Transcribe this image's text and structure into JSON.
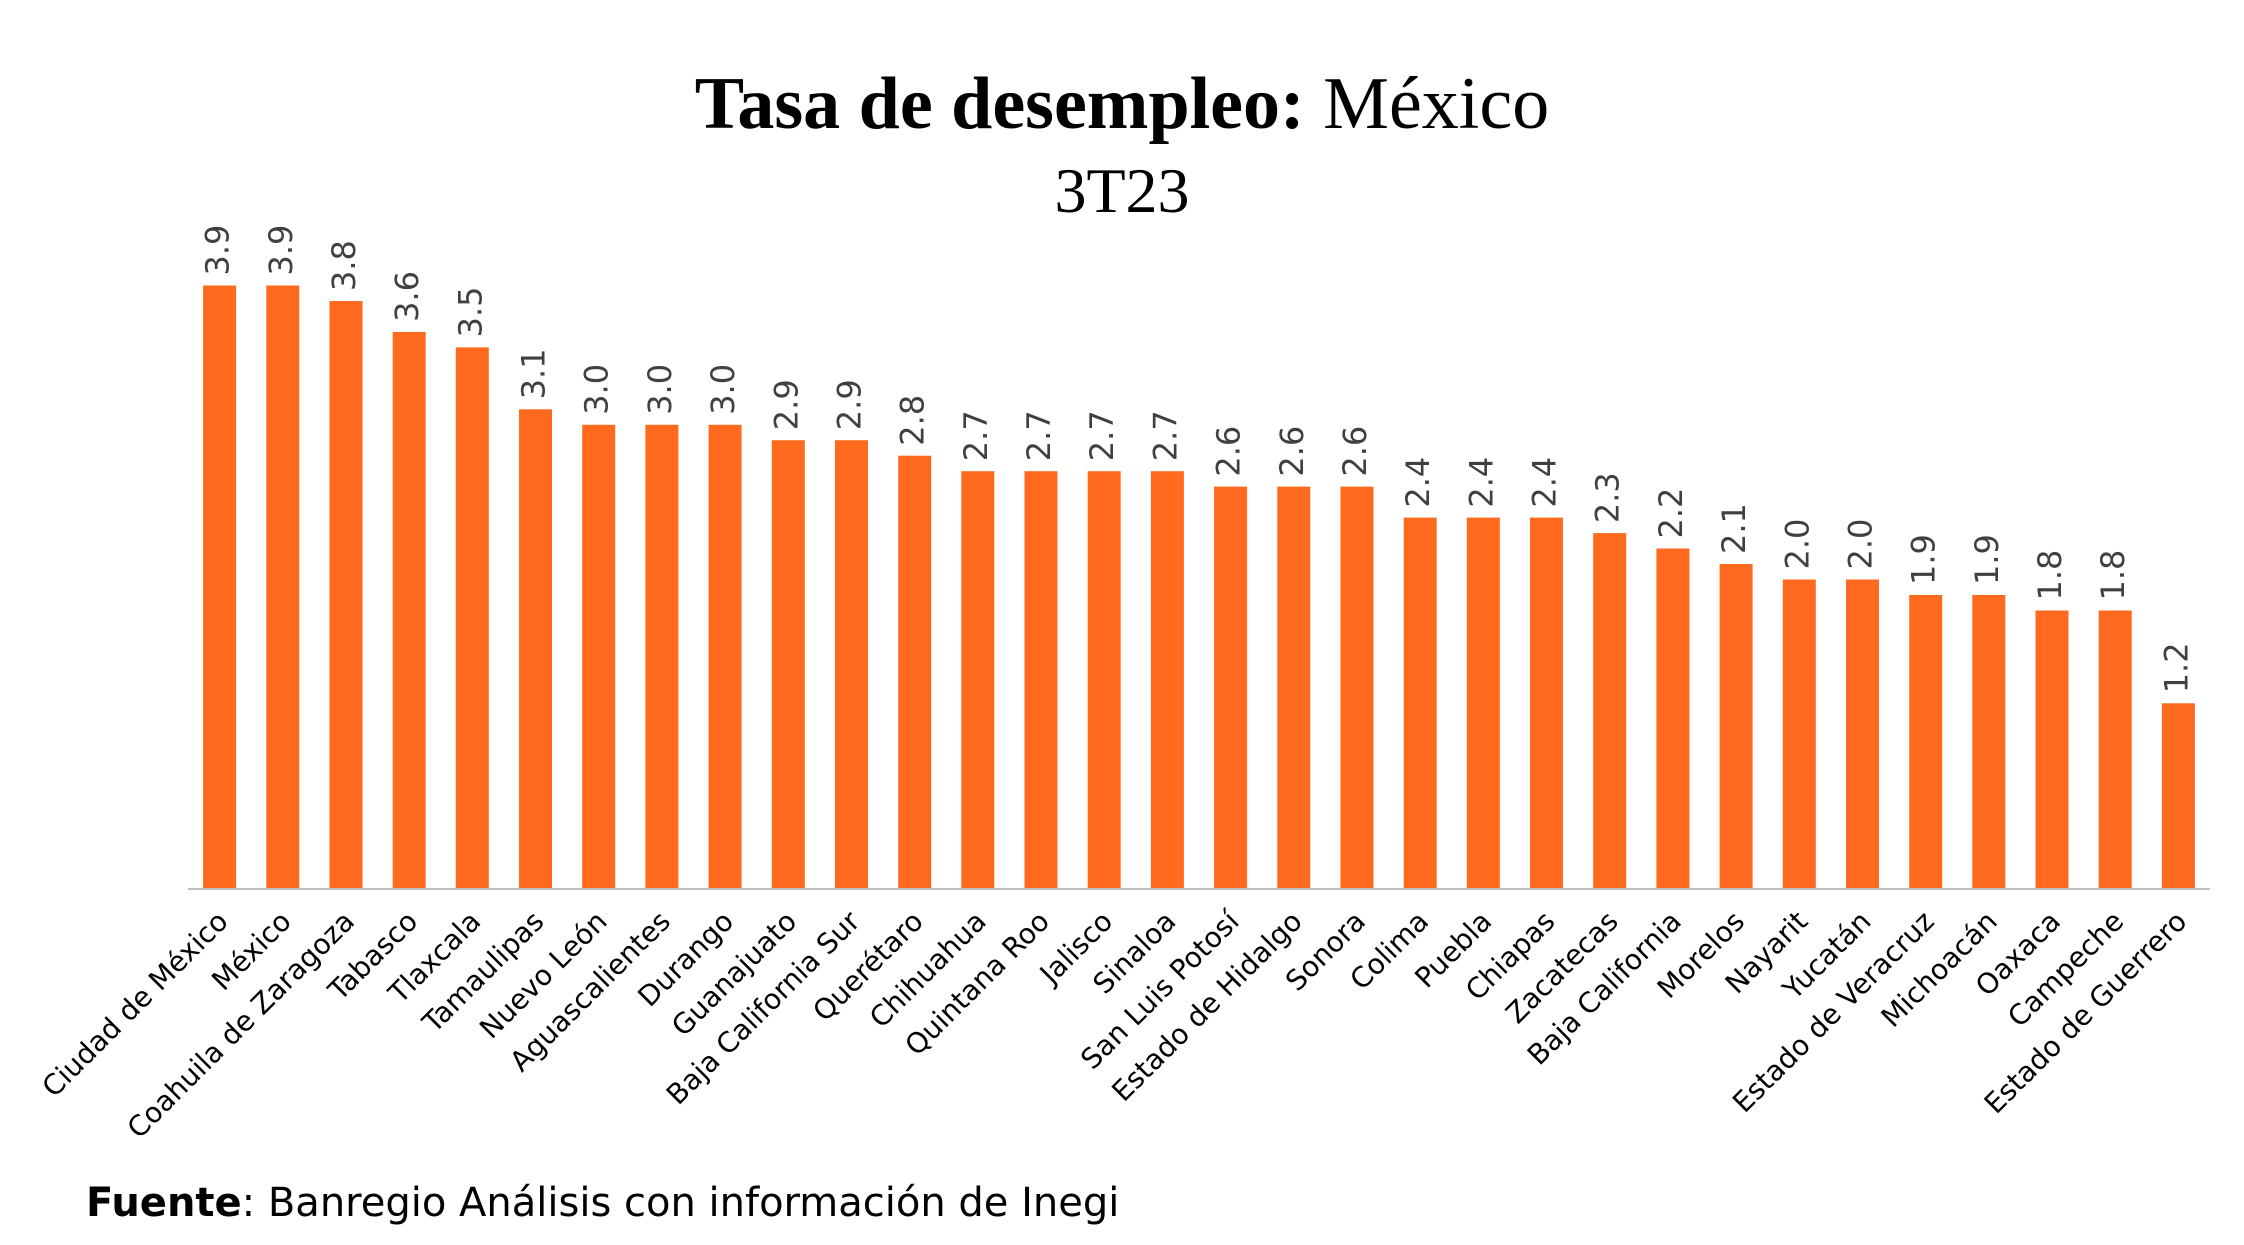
{
  "chart_data": {
    "type": "bar",
    "title_bold": "Tasa de desempleo:",
    "title_rest": "México",
    "subtitle": "3T23",
    "categories": [
      "Ciudad de México",
      "México",
      "Coahuila de Zaragoza",
      "Tabasco",
      "Tlaxcala",
      "Tamaulipas",
      "Nuevo León",
      "Aguascalientes",
      "Durango",
      "Guanajuato",
      "Baja California Sur",
      "Querétaro",
      "Chihuahua",
      "Quintana Roo",
      "Jalisco",
      "Sinaloa",
      "San Luis Potosí",
      "Estado de Hidalgo",
      "Sonora",
      "Colima",
      "Puebla",
      "Chiapas",
      "Zacatecas",
      "Baja California",
      "Morelos",
      "Nayarit",
      "Yucatán",
      "Estado de Veracruz",
      "Michoacán",
      "Oaxaca",
      "Campeche",
      "Estado de Guerrero"
    ],
    "values": [
      3.9,
      3.9,
      3.8,
      3.6,
      3.5,
      3.1,
      3.0,
      3.0,
      3.0,
      2.9,
      2.9,
      2.8,
      2.7,
      2.7,
      2.7,
      2.7,
      2.6,
      2.6,
      2.6,
      2.4,
      2.4,
      2.4,
      2.3,
      2.2,
      2.1,
      2.0,
      2.0,
      1.9,
      1.9,
      1.8,
      1.8,
      1.2
    ],
    "data_labels": [
      "3.9",
      "3.9",
      "3.8",
      "3.6",
      "3.5",
      "3.1",
      "3.0",
      "3.0",
      "3.0",
      "2.9",
      "2.9",
      "2.8",
      "2.7",
      "2.7",
      "2.7",
      "2.7",
      "2.6",
      "2.6",
      "2.6",
      "2.4",
      "2.4",
      "2.4",
      "2.3",
      "2.2",
      "2.1",
      "2.0",
      "2.0",
      "1.9",
      "1.9",
      "1.8",
      "1.8",
      "1.2"
    ],
    "bar_color": "#FF6A1F",
    "axis_color": "#BFBFBF",
    "ylim": [
      0,
      4.0
    ],
    "grid": false,
    "legend": "none"
  },
  "footer": {
    "source_label": "Fuente",
    "source_text": ": Banregio Análisis con información de Inegi"
  }
}
